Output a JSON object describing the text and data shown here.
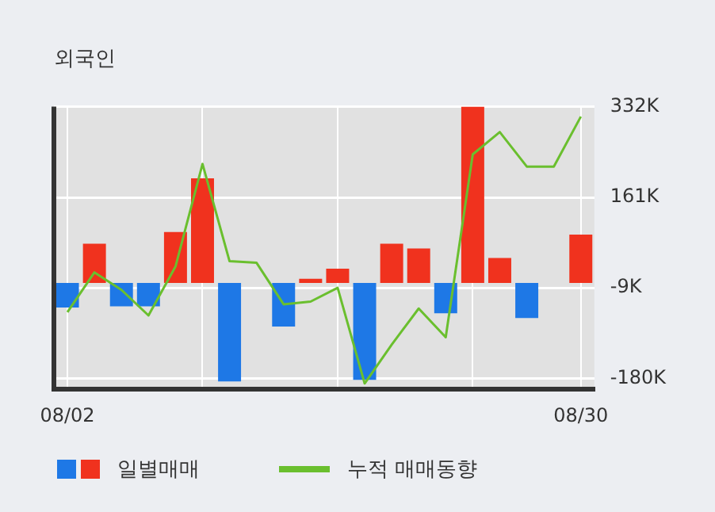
{
  "chart_data": {
    "type": "bar",
    "title": "외국인",
    "categories": [
      "08/02",
      null,
      null,
      null,
      null,
      null,
      null,
      null,
      null,
      null,
      null,
      null,
      null,
      null,
      null,
      null,
      null,
      null,
      null,
      "08/30"
    ],
    "series": [
      {
        "name": "일별매매",
        "colors": [
          "#1e78e6",
          "#f0321e",
          "#1e78e6",
          "#1e78e6",
          "#f0321e",
          "#f0321e",
          "#1e78e6",
          null,
          "#1e78e6",
          "#f0321e",
          "#f0321e",
          "#1e78e6",
          "#f0321e",
          "#f0321e",
          "#1e78e6",
          "#f0321e",
          "#f0321e",
          "#1e78e6",
          null,
          "#f0321e"
        ],
        "values": [
          -46,
          74,
          -44,
          -44,
          96,
          197,
          -185,
          null,
          -82,
          8,
          27,
          -182,
          74,
          65,
          -57,
          332,
          47,
          -66,
          null,
          91
        ]
      },
      {
        "name": "누적 매매동향",
        "type": "line",
        "color": "#6abf2e",
        "values": [
          -55,
          20,
          -13,
          -61,
          31,
          224,
          41,
          38,
          -40,
          -35,
          -9,
          -189,
          -116,
          -48,
          -102,
          242,
          284,
          219,
          219,
          313
        ]
      }
    ],
    "ylim": [
      -200,
      332
    ],
    "yticks": [
      {
        "value": 332,
        "label": "332K"
      },
      {
        "value": 161,
        "label": "161K"
      },
      {
        "value": -9,
        "label": "-9K"
      },
      {
        "value": -180,
        "label": "-180K"
      }
    ],
    "grid": true,
    "legend": "bottom",
    "marker": "none"
  }
}
